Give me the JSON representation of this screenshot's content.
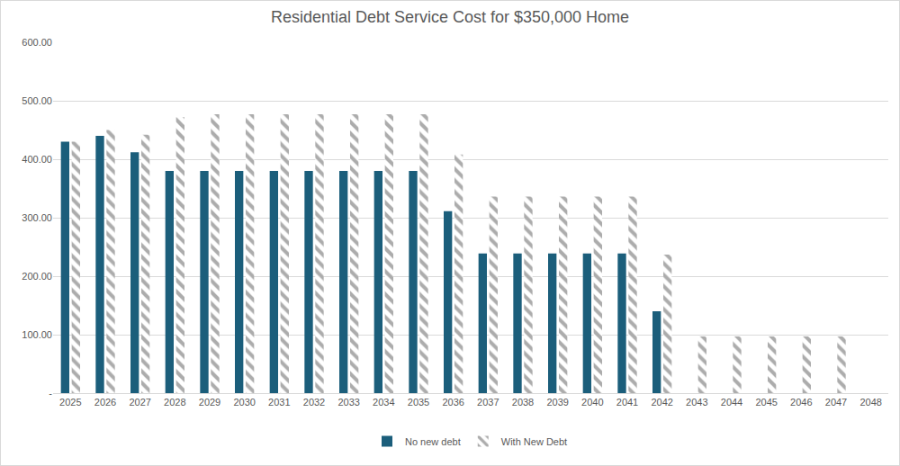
{
  "chart_data": {
    "type": "bar",
    "title": "Residential Debt Service Cost for $350,000 Home",
    "categories": [
      "2025",
      "2026",
      "2027",
      "2028",
      "2029",
      "2030",
      "2031",
      "2032",
      "2033",
      "2034",
      "2035",
      "2036",
      "2037",
      "2038",
      "2039",
      "2040",
      "2041",
      "2042",
      "2043",
      "2044",
      "2045",
      "2046",
      "2047",
      "2048"
    ],
    "series": [
      {
        "name": "No new debt",
        "color": "#1b5e7b",
        "marker": "solid",
        "values": [
          430,
          440,
          412,
          380,
          380,
          380,
          380,
          380,
          380,
          380,
          380,
          311,
          239,
          239,
          239,
          239,
          239,
          140,
          null,
          null,
          null,
          null,
          null,
          null
        ]
      },
      {
        "name": "With New Debt",
        "color": "#595959",
        "marker": "hatch",
        "values": [
          430,
          450,
          442,
          472,
          477,
          477,
          477,
          477,
          477,
          477,
          477,
          408,
          336,
          336,
          336,
          336,
          336,
          237,
          97,
          97,
          97,
          97,
          97,
          null
        ]
      }
    ],
    "ylim": [
      0,
      600
    ],
    "yticks": [
      {
        "value": 0,
        "label": "-"
      },
      {
        "value": 100,
        "label": "100.00"
      },
      {
        "value": 200,
        "label": "200.00"
      },
      {
        "value": 300,
        "label": "300.00"
      },
      {
        "value": 400,
        "label": "400.00"
      },
      {
        "value": 500,
        "label": "500.00"
      },
      {
        "value": 600,
        "label": "600.00"
      }
    ],
    "grid": true,
    "legend": "bottom"
  }
}
